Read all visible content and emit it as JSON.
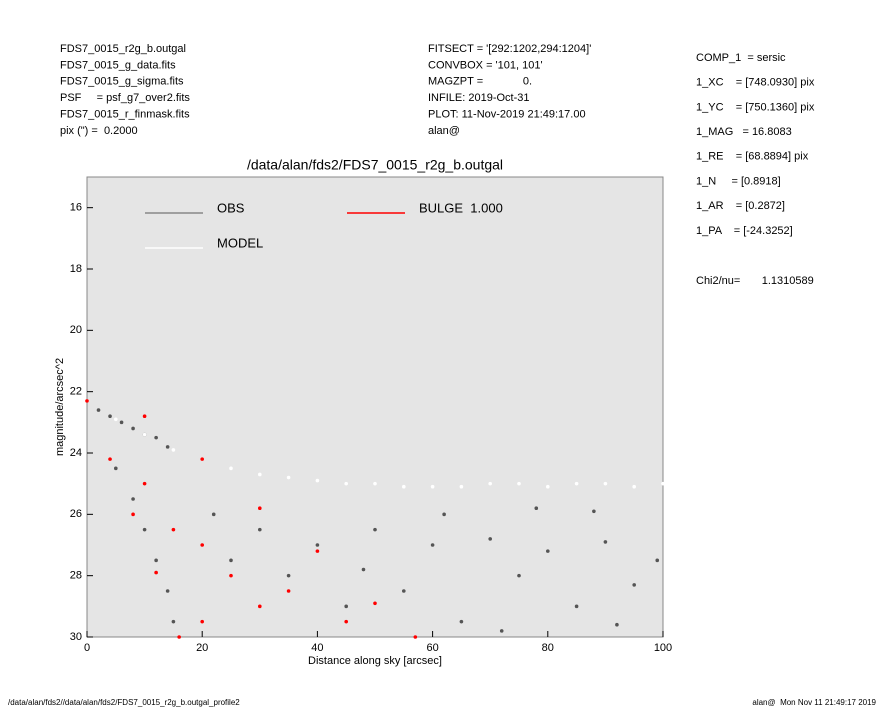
{
  "header": {
    "left": [
      "FDS7_0015_r2g_b.outgal",
      "FDS7_0015_g_data.fits",
      "FDS7_0015_g_sigma.fits",
      "PSF     = psf_g7_over2.fits",
      "FDS7_0015_r_finmask.fits",
      "pix (\") =  0.2000"
    ],
    "middle": [
      "FITSECT = '[292:1202,294:1204]'",
      "CONVBOX = '101, 101'",
      "MAGZPT =             0.",
      "INFILE: 2019-Oct-31",
      "PLOT: 11-Nov-2019 21:49:17.00",
      "alan@"
    ],
    "right": [
      "COMP_1  = sersic",
      "1_XC    = [748.0930] pix",
      "1_YC    = [750.1360] pix",
      "1_MAG   = 16.8083",
      "1_RE    = [68.8894] pix",
      "1_N     = [0.8918]",
      "1_AR    = [0.2872]",
      "1_PA    = [-24.3252]"
    ],
    "chi2": "Chi2/nu=       1.1310589"
  },
  "footer": {
    "left": "/data/alan/fds2//data/alan/fds2/FDS7_0015_r2g_b.outgal_profile2",
    "right": "alan@  Mon Nov 11 21:49:17 2019"
  },
  "chart_data": {
    "type": "scatter",
    "title": "/data/alan/fds2/FDS7_0015_r2g_b.outgal",
    "xlabel": "Distance along sky [arcsec]",
    "ylabel": "magnitude/arcsec^2",
    "xlim": [
      0,
      100
    ],
    "xticks": [
      0,
      20,
      40,
      60,
      80,
      100
    ],
    "ylim": [
      30,
      15
    ],
    "yticks": [
      16,
      18,
      20,
      22,
      24,
      26,
      28,
      30
    ],
    "background": "#e5e5e5",
    "series": [
      {
        "name": "OBS",
        "color": "#555555",
        "x": [
          2,
          4,
          6,
          8,
          10,
          12,
          14,
          5,
          8,
          10,
          12,
          14,
          15,
          22,
          25,
          30,
          35,
          40,
          45,
          50,
          55,
          60,
          65,
          70,
          75,
          80,
          85,
          90,
          95,
          99,
          62,
          78,
          88,
          48,
          72,
          92
        ],
        "values": [
          22.6,
          22.8,
          23.0,
          23.2,
          23.4,
          23.5,
          23.8,
          24.5,
          25.5,
          26.5,
          27.5,
          28.5,
          29.5,
          26,
          27.5,
          26.5,
          28,
          27,
          29,
          26.5,
          28.5,
          27,
          29.5,
          26.8,
          28,
          27.2,
          29,
          26.9,
          28.3,
          27.5,
          26,
          25.8,
          25.9,
          27.8,
          29.8,
          29.6
        ]
      },
      {
        "name": "MODEL",
        "color": "#ffffff",
        "x": [
          0,
          5,
          10,
          15,
          20,
          25,
          30,
          35,
          40,
          45,
          50,
          55,
          60,
          65,
          70,
          75,
          80,
          85,
          90,
          95,
          100
        ],
        "values": [
          22.3,
          22.9,
          23.4,
          23.9,
          24.2,
          24.5,
          24.7,
          24.8,
          24.9,
          25,
          25,
          25.1,
          25.1,
          25.1,
          25,
          25,
          25.1,
          25,
          25,
          25.1,
          25
        ]
      },
      {
        "name": "BULGE  1.000",
        "color": "#ff0000",
        "x": [
          0,
          4,
          8,
          12,
          16,
          10,
          20,
          30,
          40,
          50,
          57,
          10,
          15,
          20,
          25,
          30,
          20,
          35,
          45
        ],
        "values": [
          22.3,
          24.2,
          26,
          27.9,
          30,
          22.8,
          24.2,
          25.8,
          27.2,
          28.9,
          30,
          25,
          26.5,
          27,
          28,
          29,
          29.5,
          28.5,
          29.5
        ]
      }
    ]
  }
}
